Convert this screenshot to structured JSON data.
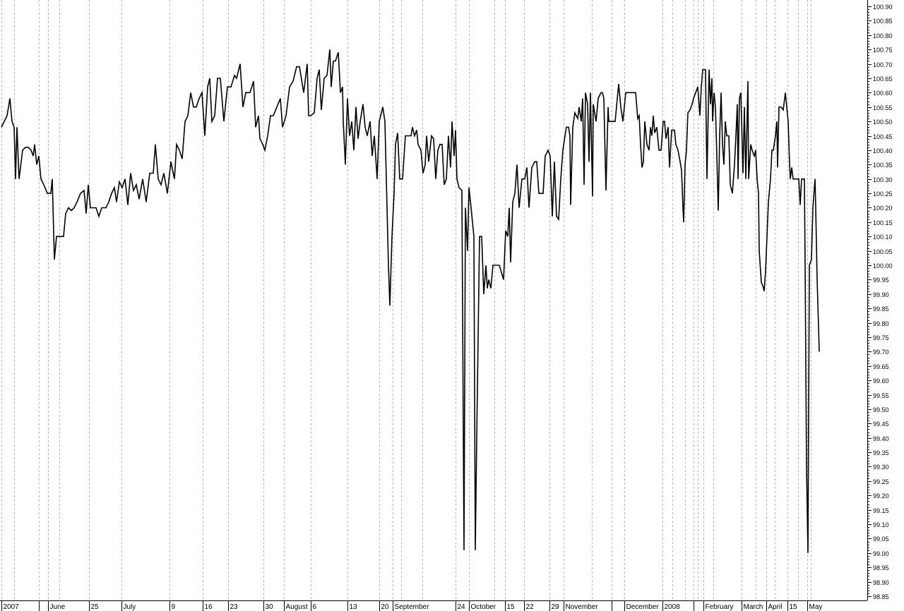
{
  "chart_data": {
    "type": "line",
    "title": "",
    "xlabel": "",
    "ylabel": "",
    "ylim": [
      98.85,
      100.9
    ],
    "y_ticks": [
      "100.90",
      "100.85",
      "100.80",
      "100.75",
      "100.70",
      "100.65",
      "100.60",
      "100.55",
      "100.50",
      "100.45",
      "100.40",
      "100.35",
      "100.30",
      "100.25",
      "100.20",
      "100.15",
      "100.10",
      "100.05",
      "100.00",
      "99.95",
      "99.90",
      "99.85",
      "99.80",
      "99.75",
      "99.70",
      "99.65",
      "99.60",
      "99.55",
      "99.50",
      "99.45",
      "99.40",
      "99.35",
      "99.30",
      "99.25",
      "99.20",
      "99.15",
      "99.10",
      "99.05",
      "99.00",
      "98.95",
      "98.90",
      "98.85"
    ],
    "x_ticks": [
      {
        "label": "2007",
        "bar": 0
      },
      {
        "label": "June",
        "bar": 66
      },
      {
        "label": "25",
        "bar": 124
      },
      {
        "label": "July",
        "bar": 170
      },
      {
        "label": "9",
        "bar": 238
      },
      {
        "label": "16",
        "bar": 285
      },
      {
        "label": "23",
        "bar": 321
      },
      {
        "label": "30",
        "bar": 371
      },
      {
        "label": "August",
        "bar": 400
      },
      {
        "label": "6",
        "bar": 438
      },
      {
        "label": "13",
        "bar": 490
      },
      {
        "label": "20",
        "bar": 535
      },
      {
        "label": "September",
        "bar": 554
      },
      {
        "label": "24",
        "bar": 643
      },
      {
        "label": "October",
        "bar": 662
      },
      {
        "label": "15",
        "bar": 713
      },
      {
        "label": "22",
        "bar": 740
      },
      {
        "label": "29",
        "bar": 776
      },
      {
        "label": "November",
        "bar": 796
      },
      {
        "label": "December",
        "bar": 882
      },
      {
        "label": "2008",
        "bar": 936
      },
      {
        "label": "February",
        "bar": 994
      },
      {
        "label": "March",
        "bar": 1048
      },
      {
        "label": "April",
        "bar": 1083
      },
      {
        "label": "15",
        "bar": 1113
      },
      {
        "label": "May",
        "bar": 1141
      }
    ],
    "grid": true,
    "line_color": "#000000",
    "grid_color": "#b4b4b4",
    "points": [
      [
        0,
        100.48
      ],
      [
        4,
        100.5
      ],
      [
        8,
        100.52
      ],
      [
        12,
        100.58
      ],
      [
        15,
        100.5
      ],
      [
        18,
        100.48
      ],
      [
        20,
        100.3
      ],
      [
        22,
        100.48
      ],
      [
        25,
        100.3
      ],
      [
        30,
        100.4
      ],
      [
        34,
        100.41
      ],
      [
        38,
        100.41
      ],
      [
        42,
        100.4
      ],
      [
        45,
        100.38
      ],
      [
        47,
        100.42
      ],
      [
        50,
        100.35
      ],
      [
        53,
        100.38
      ],
      [
        56,
        100.3
      ],
      [
        60,
        100.28
      ],
      [
        65,
        100.25
      ],
      [
        70,
        100.25
      ],
      [
        72,
        100.3
      ],
      [
        75,
        100.02
      ],
      [
        78,
        100.1
      ],
      [
        82,
        100.1
      ],
      [
        88,
        100.1
      ],
      [
        91,
        100.18
      ],
      [
        95,
        100.2
      ],
      [
        99,
        100.19
      ],
      [
        103,
        100.2
      ],
      [
        107,
        100.22
      ],
      [
        112,
        100.25
      ],
      [
        117,
        100.26
      ],
      [
        120,
        100.18
      ],
      [
        123,
        100.28
      ],
      [
        126,
        100.2
      ],
      [
        130,
        100.2
      ],
      [
        134,
        100.2
      ],
      [
        138,
        100.17
      ],
      [
        142,
        100.2
      ],
      [
        148,
        100.2
      ],
      [
        152,
        100.22
      ],
      [
        156,
        100.25
      ],
      [
        160,
        100.27
      ],
      [
        163,
        100.22
      ],
      [
        167,
        100.29
      ],
      [
        171,
        100.27
      ],
      [
        175,
        100.3
      ],
      [
        179,
        100.21
      ],
      [
        183,
        100.32
      ],
      [
        187,
        100.26
      ],
      [
        191,
        100.28
      ],
      [
        195,
        100.23
      ],
      [
        200,
        100.3
      ],
      [
        205,
        100.22
      ],
      [
        210,
        100.32
      ],
      [
        215,
        100.32
      ],
      [
        218,
        100.42
      ],
      [
        222,
        100.3
      ],
      [
        226,
        100.28
      ],
      [
        230,
        100.32
      ],
      [
        235,
        100.25
      ],
      [
        240,
        100.36
      ],
      [
        245,
        100.3
      ],
      [
        248,
        100.42
      ],
      [
        252,
        100.4
      ],
      [
        256,
        100.37
      ],
      [
        260,
        100.5
      ],
      [
        264,
        100.52
      ],
      [
        268,
        100.6
      ],
      [
        272,
        100.55
      ],
      [
        276,
        100.55
      ],
      [
        280,
        100.58
      ],
      [
        284,
        100.6
      ],
      [
        288,
        100.45
      ],
      [
        292,
        100.62
      ],
      [
        295,
        100.65
      ],
      [
        298,
        100.5
      ],
      [
        302,
        100.52
      ],
      [
        306,
        100.65
      ],
      [
        310,
        100.65
      ],
      [
        315,
        100.5
      ],
      [
        320,
        100.62
      ],
      [
        325,
        100.62
      ],
      [
        330,
        100.66
      ],
      [
        333,
        100.65
      ],
      [
        338,
        100.7
      ],
      [
        342,
        100.55
      ],
      [
        346,
        100.6
      ],
      [
        352,
        100.6
      ],
      [
        357,
        100.64
      ],
      [
        360,
        100.48
      ],
      [
        364,
        100.52
      ],
      [
        366,
        100.44
      ],
      [
        370,
        100.42
      ],
      [
        373,
        100.4
      ],
      [
        377,
        100.45
      ],
      [
        381,
        100.52
      ],
      [
        385,
        100.52
      ],
      [
        390,
        100.55
      ],
      [
        395,
        100.58
      ],
      [
        398,
        100.48
      ],
      [
        403,
        100.52
      ],
      [
        408,
        100.62
      ],
      [
        413,
        100.64
      ],
      [
        418,
        100.69
      ],
      [
        422,
        100.69
      ],
      [
        428,
        100.6
      ],
      [
        433,
        100.7
      ],
      [
        435,
        100.52
      ],
      [
        438,
        100.52
      ],
      [
        443,
        100.53
      ],
      [
        447,
        100.65
      ],
      [
        450,
        100.68
      ],
      [
        453,
        100.54
      ],
      [
        457,
        100.65
      ],
      [
        461,
        100.66
      ],
      [
        465,
        100.75
      ],
      [
        467,
        100.62
      ],
      [
        470,
        100.71
      ],
      [
        473,
        100.71
      ],
      [
        477,
        100.74
      ],
      [
        480,
        100.6
      ],
      [
        483,
        100.62
      ],
      [
        484,
        100.5
      ],
      [
        487,
        100.35
      ],
      [
        490,
        100.58
      ],
      [
        493,
        100.45
      ],
      [
        496,
        100.5
      ],
      [
        499,
        100.4
      ],
      [
        502,
        100.55
      ],
      [
        505,
        100.44
      ],
      [
        508,
        100.5
      ],
      [
        512,
        100.56
      ],
      [
        515,
        100.48
      ],
      [
        518,
        100.45
      ],
      [
        522,
        100.5
      ],
      [
        525,
        100.38
      ],
      [
        528,
        100.45
      ],
      [
        532,
        100.3
      ],
      [
        535,
        100.5
      ],
      [
        540,
        100.55
      ],
      [
        543,
        100.5
      ],
      [
        545,
        100.3
      ],
      [
        548,
        100.0
      ],
      [
        550,
        99.86
      ],
      [
        553,
        100.1
      ],
      [
        556,
        100.25
      ],
      [
        558,
        100.42
      ],
      [
        561,
        100.46
      ],
      [
        564,
        100.3
      ],
      [
        568,
        100.3
      ],
      [
        572,
        100.45
      ],
      [
        576,
        100.45
      ],
      [
        580,
        100.45
      ],
      [
        582,
        100.48
      ],
      [
        585,
        100.45
      ],
      [
        588,
        100.47
      ],
      [
        590,
        100.42
      ],
      [
        594,
        100.4
      ],
      [
        597,
        100.32
      ],
      [
        600,
        100.35
      ],
      [
        602,
        100.45
      ],
      [
        605,
        100.36
      ],
      [
        609,
        100.45
      ],
      [
        612,
        100.44
      ],
      [
        615,
        100.3
      ],
      [
        618,
        100.4
      ],
      [
        621,
        100.42
      ],
      [
        624,
        100.42
      ],
      [
        627,
        100.28
      ],
      [
        630,
        100.3
      ],
      [
        633,
        100.45
      ],
      [
        636,
        100.34
      ],
      [
        638,
        100.5
      ],
      [
        641,
        100.38
      ],
      [
        643,
        100.47
      ],
      [
        645,
        100.3
      ],
      [
        648,
        100.27
      ],
      [
        652,
        100.26
      ],
      [
        655,
        99.01
      ],
      [
        657,
        100.2
      ],
      [
        660,
        100.05
      ],
      [
        662,
        100.27
      ],
      [
        665,
        100.2
      ],
      [
        669,
        100.1
      ],
      [
        671,
        99.01
      ],
      [
        673,
        99.4
      ],
      [
        677,
        100.1
      ],
      [
        680,
        100.1
      ],
      [
        683,
        99.9
      ],
      [
        686,
        100.0
      ],
      [
        688,
        99.92
      ],
      [
        690,
        99.95
      ],
      [
        693,
        99.92
      ],
      [
        696,
        100.0
      ],
      [
        705,
        100.0
      ],
      [
        711,
        99.95
      ],
      [
        714,
        100.12
      ],
      [
        717,
        100.1
      ],
      [
        719,
        100.2
      ],
      [
        721,
        100.01
      ],
      [
        724,
        100.22
      ],
      [
        727,
        100.25
      ],
      [
        730,
        100.35
      ],
      [
        733,
        100.2
      ],
      [
        737,
        100.3
      ],
      [
        741,
        100.3
      ],
      [
        744,
        100.34
      ],
      [
        747,
        100.2
      ],
      [
        751,
        100.34
      ],
      [
        755,
        100.36
      ],
      [
        758,
        100.36
      ],
      [
        761,
        100.25
      ],
      [
        767,
        100.25
      ],
      [
        770,
        100.38
      ],
      [
        774,
        100.4
      ],
      [
        777,
        100.38
      ],
      [
        780,
        100.17
      ],
      [
        783,
        100.36
      ],
      [
        786,
        100.17
      ],
      [
        789,
        100.16
      ],
      [
        792,
        100.3
      ],
      [
        795,
        100.4
      ],
      [
        798,
        100.45
      ],
      [
        800,
        100.48
      ],
      [
        803,
        100.48
      ],
      [
        805,
        100.45
      ],
      [
        806,
        100.21
      ],
      [
        809,
        100.48
      ],
      [
        812,
        100.53
      ],
      [
        816,
        100.51
      ],
      [
        818,
        100.55
      ],
      [
        821,
        100.5
      ],
      [
        823,
        100.58
      ],
      [
        825,
        100.28
      ],
      [
        827,
        100.6
      ],
      [
        830,
        100.56
      ],
      [
        832,
        100.36
      ],
      [
        834,
        100.6
      ],
      [
        837,
        100.24
      ],
      [
        838,
        100.56
      ],
      [
        842,
        100.5
      ],
      [
        845,
        100.58
      ],
      [
        849,
        100.6
      ],
      [
        851,
        100.6
      ],
      [
        853,
        100.58
      ],
      [
        856,
        100.26
      ],
      [
        859,
        100.55
      ],
      [
        860,
        100.5
      ],
      [
        869,
        100.5
      ],
      [
        874,
        100.63
      ],
      [
        877,
        100.55
      ],
      [
        880,
        100.5
      ],
      [
        884,
        100.6
      ],
      [
        898,
        100.6
      ],
      [
        901,
        100.51
      ],
      [
        903,
        100.52
      ],
      [
        905,
        100.42
      ],
      [
        907,
        100.34
      ],
      [
        909,
        100.36
      ],
      [
        911,
        100.5
      ],
      [
        914,
        100.42
      ],
      [
        917,
        100.4
      ],
      [
        919,
        100.48
      ],
      [
        921,
        100.45
      ],
      [
        923,
        100.52
      ],
      [
        925,
        100.46
      ],
      [
        928,
        100.48
      ],
      [
        931,
        100.4
      ],
      [
        934,
        100.4
      ],
      [
        937,
        100.5
      ],
      [
        939,
        100.5
      ],
      [
        941,
        100.44
      ],
      [
        944,
        100.48
      ],
      [
        946,
        100.34
      ],
      [
        949,
        100.47
      ],
      [
        953,
        100.47
      ],
      [
        955,
        100.42
      ],
      [
        958,
        100.4
      ],
      [
        961,
        100.36
      ],
      [
        963,
        100.33
      ],
      [
        965,
        100.2
      ],
      [
        966,
        100.15
      ],
      [
        968,
        100.35
      ],
      [
        970,
        100.4
      ],
      [
        972,
        100.53
      ],
      [
        975,
        100.54
      ],
      [
        978,
        100.56
      ],
      [
        980,
        100.58
      ],
      [
        983,
        100.6
      ],
      [
        986,
        100.62
      ],
      [
        989,
        100.52
      ],
      [
        991,
        100.62
      ],
      [
        993,
        100.68
      ],
      [
        997,
        100.68
      ],
      [
        998,
        100.48
      ],
      [
        999,
        100.3
      ],
      [
        1002,
        100.68
      ],
      [
        1004,
        100.56
      ],
      [
        1006,
        100.65
      ],
      [
        1007,
        100.5
      ],
      [
        1009,
        100.6
      ],
      [
        1011,
        100.55
      ],
      [
        1013,
        100.38
      ],
      [
        1015,
        100.19
      ],
      [
        1017,
        100.45
      ],
      [
        1019,
        100.6
      ],
      [
        1021,
        100.42
      ],
      [
        1023,
        100.35
      ],
      [
        1025,
        100.5
      ],
      [
        1027,
        100.45
      ],
      [
        1030,
        100.45
      ],
      [
        1032,
        100.28
      ],
      [
        1035,
        100.25
      ],
      [
        1038,
        100.35
      ],
      [
        1040,
        100.45
      ],
      [
        1042,
        100.56
      ],
      [
        1043,
        100.3
      ],
      [
        1045,
        100.58
      ],
      [
        1047,
        100.6
      ],
      [
        1050,
        100.32
      ],
      [
        1052,
        100.55
      ],
      [
        1054,
        100.3
      ],
      [
        1057,
        100.64
      ],
      [
        1058,
        100.3
      ],
      [
        1061,
        100.42
      ],
      [
        1063,
        100.4
      ],
      [
        1066,
        100.38
      ],
      [
        1068,
        100.4
      ],
      [
        1070,
        100.3
      ],
      [
        1072,
        100.25
      ],
      [
        1073,
        100.05
      ],
      [
        1076,
        99.94
      ],
      [
        1078,
        99.93
      ],
      [
        1080,
        99.91
      ],
      [
        1082,
        99.98
      ],
      [
        1084,
        100.1
      ],
      [
        1086,
        100.22
      ],
      [
        1089,
        100.3
      ],
      [
        1091,
        100.4
      ],
      [
        1093,
        100.4
      ],
      [
        1096,
        100.45
      ],
      [
        1098,
        100.5
      ],
      [
        1099,
        100.34
      ],
      [
        1101,
        100.55
      ],
      [
        1104,
        100.55
      ],
      [
        1107,
        100.54
      ],
      [
        1110,
        100.6
      ],
      [
        1112,
        100.55
      ],
      [
        1114,
        100.5
      ],
      [
        1116,
        100.35
      ],
      [
        1117,
        100.3
      ],
      [
        1119,
        100.34
      ],
      [
        1121,
        100.3
      ],
      [
        1124,
        100.3
      ],
      [
        1129,
        100.3
      ],
      [
        1131,
        100.21
      ],
      [
        1133,
        100.3
      ],
      [
        1135,
        100.3
      ],
      [
        1137,
        100.3
      ],
      [
        1138,
        100.0
      ],
      [
        1140,
        99.3
      ],
      [
        1142,
        99.0
      ],
      [
        1144,
        100.0
      ],
      [
        1147,
        100.02
      ],
      [
        1149,
        100.2
      ],
      [
        1152,
        100.3
      ],
      [
        1153,
        100.2
      ],
      [
        1155,
        99.95
      ],
      [
        1158,
        99.7
      ]
    ]
  }
}
